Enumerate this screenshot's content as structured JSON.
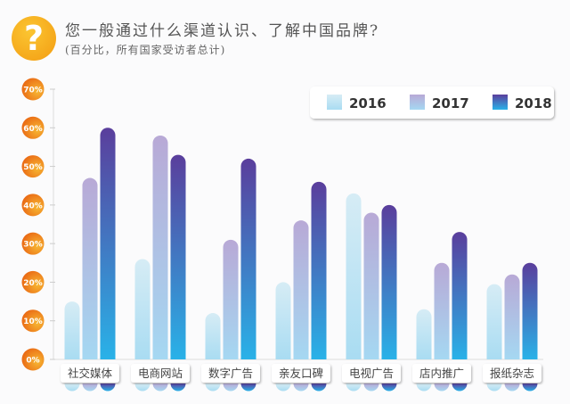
{
  "header": {
    "icon": "question-mark-icon",
    "title": "您一般通过什么渠道认识、了解中国品牌?",
    "subtitle": "(百分比，所有国家受访者总计)"
  },
  "chart_data": {
    "type": "bar",
    "title": "您一般通过什么渠道认识、了解中国品牌?",
    "subtitle": "(百分比，所有国家受访者总计)",
    "categories": [
      "社交媒体",
      "电商网站",
      "数字广告",
      "亲友口碑",
      "电视广告",
      "店内推广",
      "报纸杂志"
    ],
    "series": [
      {
        "name": "2016",
        "values": [
          15,
          26,
          12,
          20,
          43,
          13,
          19.5
        ]
      },
      {
        "name": "2017",
        "values": [
          47,
          58,
          31,
          36,
          38,
          25,
          22
        ]
      },
      {
        "name": "2018",
        "values": [
          60,
          53,
          52,
          46,
          40,
          33,
          25
        ]
      }
    ],
    "ylim": [
      0,
      70
    ],
    "yticks": [
      "0%",
      "10%",
      "20%",
      "30%",
      "40%",
      "50%",
      "60%",
      "70%"
    ],
    "legend": "top-right",
    "colors": {
      "2016": [
        "#d6ecf5",
        "#a9dcf2"
      ],
      "2017": [
        "#b8a9d6",
        "#a5d8f2"
      ],
      "2018": [
        "#5a3e9c",
        "#29b2e8"
      ],
      "tick": "#ea6a14"
    }
  }
}
